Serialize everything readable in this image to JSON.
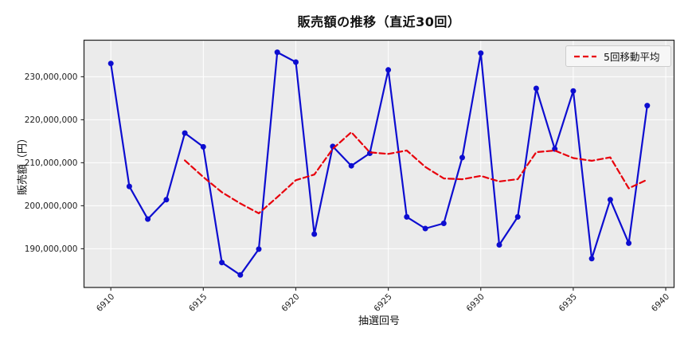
{
  "chart_data": {
    "type": "line",
    "title": "販売額の推移（直近30回）",
    "xlabel": "抽選回号",
    "ylabel": "販売額（円）",
    "x": [
      6910,
      6911,
      6912,
      6913,
      6914,
      6915,
      6916,
      6917,
      6918,
      6919,
      6920,
      6921,
      6922,
      6923,
      6924,
      6925,
      6926,
      6927,
      6928,
      6929,
      6930,
      6931,
      6932,
      6933,
      6934,
      6935,
      6936,
      6937,
      6938,
      6939
    ],
    "series": [
      {
        "name": "販売額",
        "color": "#0d0dd0",
        "style": "solid",
        "marker": "circle",
        "values": [
          233100000,
          204500000,
          196900000,
          201400000,
          216900000,
          213700000,
          186800000,
          183900000,
          189900000,
          235700000,
          233400000,
          193400000,
          213800000,
          209300000,
          212200000,
          231600000,
          197400000,
          194700000,
          195900000,
          211200000,
          235500000,
          190900000,
          197400000,
          227300000,
          213200000,
          226700000,
          187700000,
          201400000,
          191300000,
          223300000
        ]
      },
      {
        "name": "5回移動平均",
        "color": "#e8000b",
        "style": "dashed",
        "marker": "none",
        "window": 5,
        "values": [
          null,
          null,
          null,
          null,
          210560000,
          206680000,
          203140000,
          200540000,
          198240000,
          202000000,
          205940000,
          207260000,
          213240000,
          217120000,
          212420000,
          212060000,
          212860000,
          209040000,
          206360000,
          206160000,
          206940000,
          205640000,
          206180000,
          212460000,
          212860000,
          211100000,
          210460000,
          211260000,
          204060000,
          206080000
        ]
      }
    ],
    "xlim": [
      6908.55,
      6940.45
    ],
    "ylim": [
      181000000,
      238500000
    ],
    "xticks": [
      6910,
      6915,
      6920,
      6925,
      6930,
      6935,
      6940
    ],
    "xtick_labels": [
      "6910",
      "6915",
      "6920",
      "6925",
      "6930",
      "6935",
      "6940"
    ],
    "yticks": [
      190000000,
      200000000,
      210000000,
      220000000,
      230000000
    ],
    "ytick_labels": [
      "190,000,000",
      "200,000,000",
      "210,000,000",
      "220,000,000",
      "230,000,000"
    ],
    "grid": true,
    "plot_bg": "#ebebeb",
    "grid_color": "#ffffff",
    "spine_color": "#2a2a2a",
    "tick_color": "#333333",
    "legend": {
      "position": "upper right",
      "entries": [
        "5回移動平均"
      ]
    }
  }
}
